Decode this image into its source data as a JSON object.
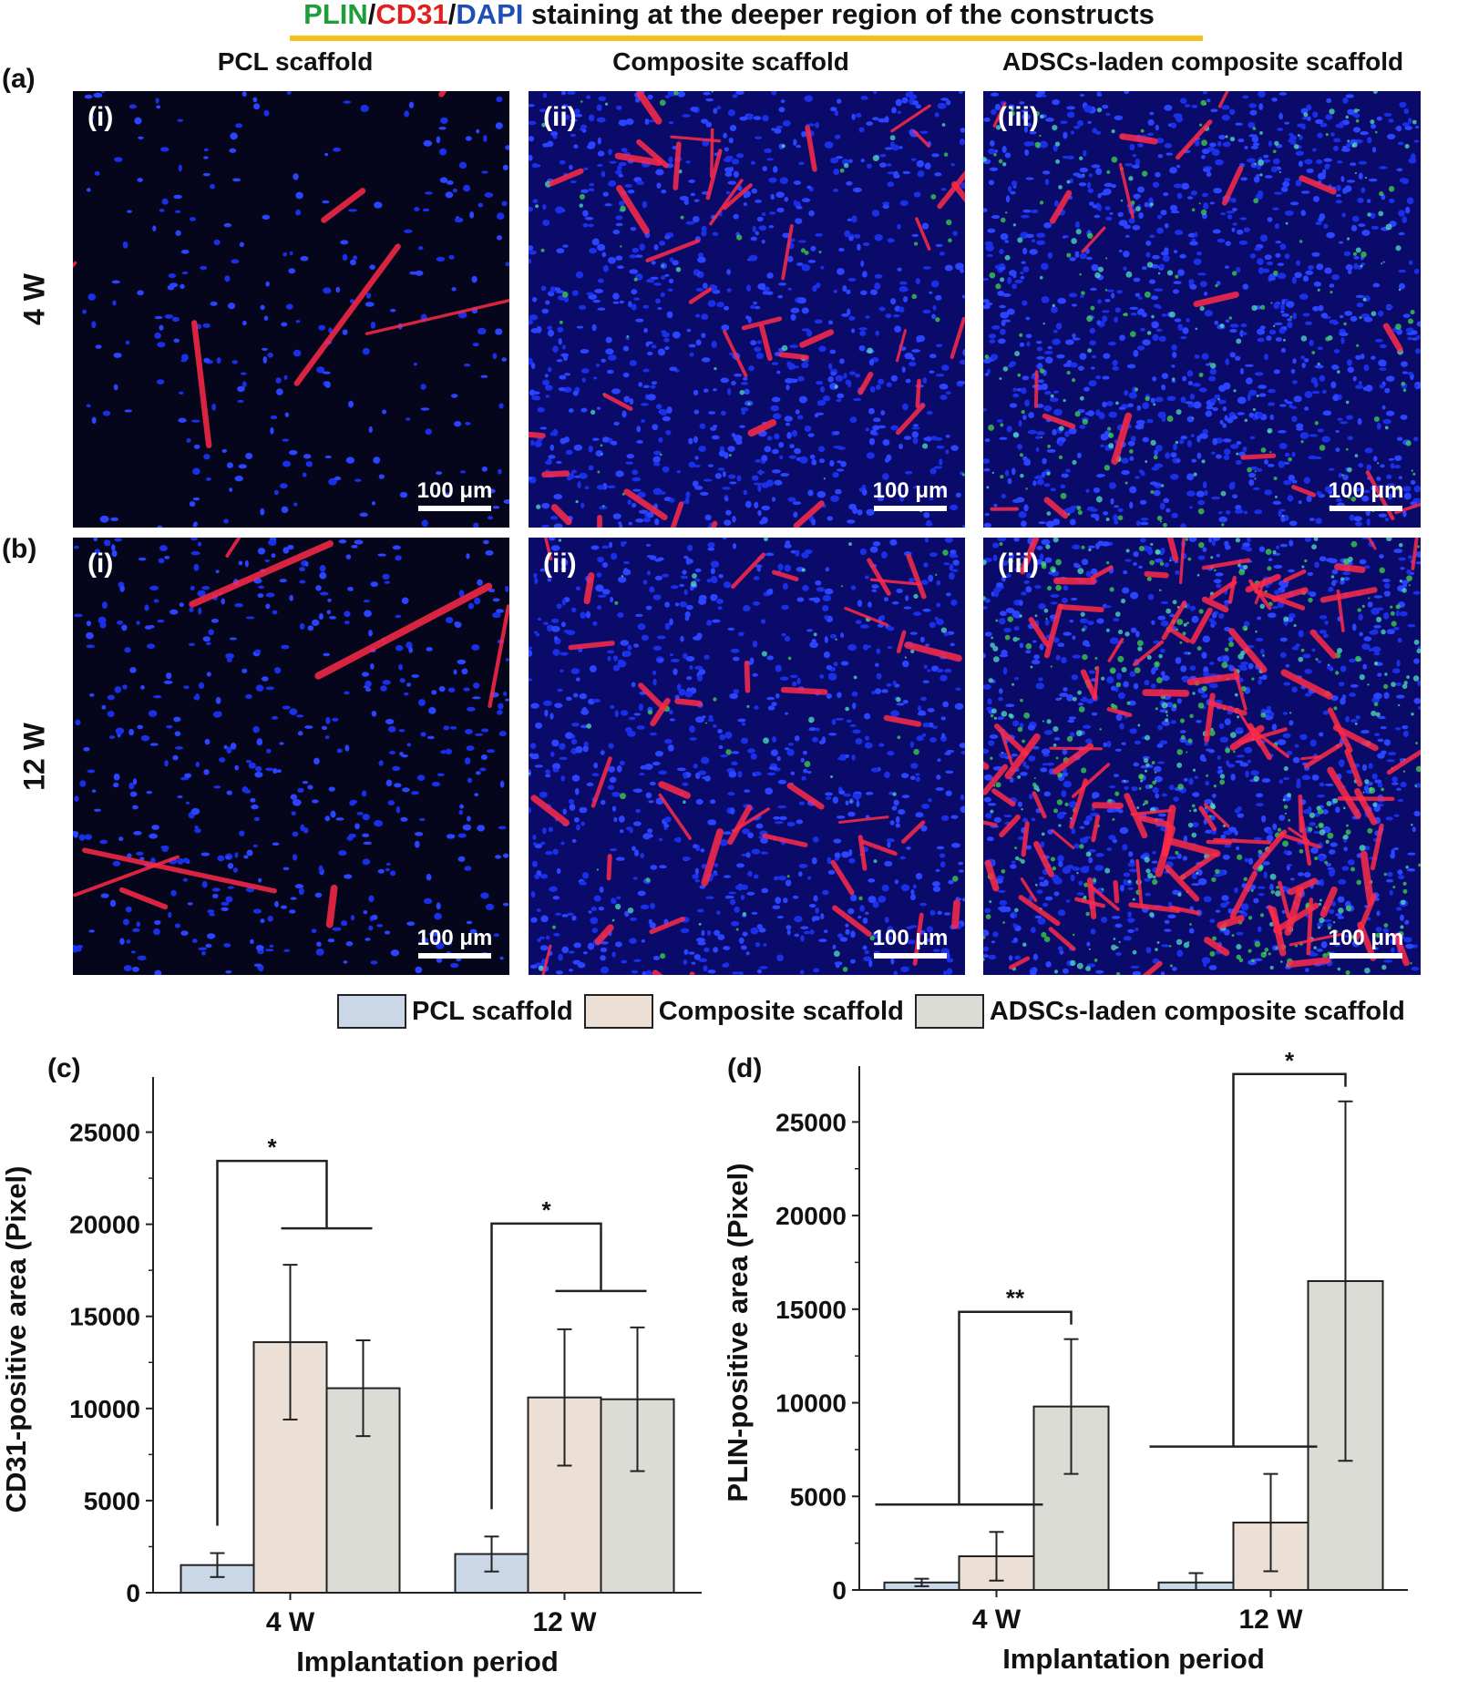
{
  "figure": {
    "title_parts": [
      {
        "text": "PLIN",
        "color": "#1e9e3a"
      },
      {
        "text": "/",
        "color": "#111111"
      },
      {
        "text": "CD31",
        "color": "#e02020"
      },
      {
        "text": "/",
        "color": "#111111"
      },
      {
        "text": "DAPI",
        "color": "#1f4fb4"
      },
      {
        "text": " staining at the deeper region of the constructs",
        "color": "#111111"
      }
    ],
    "column_headers": [
      "PCL scaffold",
      "Composite scaffold",
      "ADSCs-laden composite scaffold"
    ],
    "rows": [
      {
        "panel": "(a)",
        "label": "4 W",
        "subpanels": [
          "(i)",
          "(ii)",
          "(iii)"
        ],
        "scale": "100 μm"
      },
      {
        "panel": "(b)",
        "label": "12 W",
        "subpanels": [
          "(i)",
          "(ii)",
          "(iii)"
        ],
        "scale": "100 μm"
      }
    ],
    "legend": [
      {
        "label": "PCL scaffold",
        "color": "#c9d7e6"
      },
      {
        "label": "Composite scaffold",
        "color": "#ecdfd6"
      },
      {
        "label": "ADSCs-laden composite scaffold",
        "color": "#dcdcd6"
      }
    ]
  },
  "chart_data": [
    {
      "panel": "(c)",
      "type": "bar",
      "categories": [
        "4 W",
        "12 W"
      ],
      "series": [
        {
          "name": "PCL scaffold",
          "color": "#c9d7e6",
          "values": [
            1500,
            2100
          ],
          "errors": [
            650,
            950
          ]
        },
        {
          "name": "Composite scaffold",
          "color": "#ecdfd6",
          "values": [
            13600,
            10600
          ],
          "errors": [
            4200,
            3700
          ]
        },
        {
          "name": "ADSCs-laden composite scaffold",
          "color": "#dcdcd6",
          "values": [
            11100,
            10500
          ],
          "errors": [
            2600,
            3900
          ]
        }
      ],
      "xlabel": "Implantation period",
      "ylabel": "CD31-positive area (Pixel)",
      "ylim": [
        0,
        27500
      ],
      "yticks": [
        0,
        5000,
        10000,
        15000,
        20000,
        25000
      ],
      "significance": [
        "*",
        "*"
      ]
    },
    {
      "panel": "(d)",
      "type": "bar",
      "categories": [
        "4 W",
        "12 W"
      ],
      "series": [
        {
          "name": "PCL scaffold",
          "color": "#c9d7e6",
          "values": [
            400,
            400
          ],
          "errors": [
            200,
            500
          ]
        },
        {
          "name": "Composite scaffold",
          "color": "#ecdfd6",
          "values": [
            1800,
            3600
          ],
          "errors": [
            1300,
            2600
          ]
        },
        {
          "name": "ADSCs-laden composite scaffold",
          "color": "#dcdcd6",
          "values": [
            9800,
            16500
          ],
          "errors": [
            3600,
            9600
          ]
        }
      ],
      "xlabel": "Implantation period",
      "ylabel": "PLIN-positive area (Pixel)",
      "ylim": [
        0,
        27500
      ],
      "yticks": [
        0,
        5000,
        10000,
        15000,
        20000,
        25000
      ],
      "significance": [
        "**",
        "*"
      ]
    }
  ]
}
